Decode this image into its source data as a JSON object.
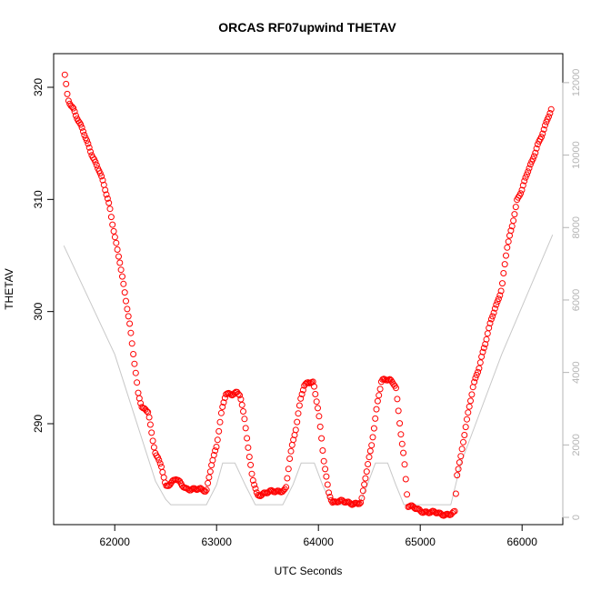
{
  "chart_data": {
    "type": "scatter",
    "title": "ORCAS RF07upwind THETAV",
    "xlabel": "UTC Seconds",
    "ylabel": "THETAV",
    "xlim": [
      61400,
      66400
    ],
    "ylim": [
      281,
      323
    ],
    "y2lim": [
      -200,
      12800
    ],
    "x_ticks": [
      62000,
      63000,
      64000,
      65000,
      66000
    ],
    "y_ticks": [
      290,
      300,
      310,
      320
    ],
    "y2_ticks": [
      0,
      2000,
      4000,
      6000,
      8000,
      10000,
      12000
    ],
    "colors": {
      "thetav": "#ff0000",
      "altitude": "#c8c8c8",
      "axis": "#000000",
      "right_axis": "#b4b4b4"
    },
    "series": [
      {
        "role": "thetav",
        "axis": "left",
        "style": "open-circles",
        "knots": [
          [
            61510,
            321.2
          ],
          [
            61540,
            319.0
          ],
          [
            61590,
            318.2
          ],
          [
            61620,
            317.4
          ],
          [
            61700,
            315.8
          ],
          [
            61780,
            314.0
          ],
          [
            61850,
            312.5
          ],
          [
            61900,
            311.0
          ],
          [
            61950,
            309.3
          ],
          [
            62000,
            306.8
          ],
          [
            62050,
            304.5
          ],
          [
            62100,
            301.5
          ],
          [
            62150,
            298.5
          ],
          [
            62200,
            295.0
          ],
          [
            62230,
            292.8
          ],
          [
            62270,
            291.5
          ],
          [
            62330,
            291.0
          ],
          [
            62370,
            288.5
          ],
          [
            62400,
            287.3
          ],
          [
            62460,
            286.3
          ],
          [
            62500,
            284.5
          ],
          [
            62550,
            284.6
          ],
          [
            62600,
            285.0
          ],
          [
            62700,
            284.3
          ],
          [
            62800,
            284.1
          ],
          [
            62900,
            284.0
          ],
          [
            62950,
            286.5
          ],
          [
            63000,
            288.0
          ],
          [
            63050,
            291.0
          ],
          [
            63090,
            292.6
          ],
          [
            63150,
            292.7
          ],
          [
            63200,
            292.9
          ],
          [
            63230,
            292.6
          ],
          [
            63280,
            290.0
          ],
          [
            63320,
            287.0
          ],
          [
            63350,
            285.3
          ],
          [
            63400,
            283.7
          ],
          [
            63500,
            283.8
          ],
          [
            63600,
            284.0
          ],
          [
            63680,
            284.2
          ],
          [
            63720,
            287.0
          ],
          [
            63780,
            289.5
          ],
          [
            63830,
            292.5
          ],
          [
            63860,
            293.5
          ],
          [
            63900,
            293.8
          ],
          [
            63950,
            293.6
          ],
          [
            64000,
            291.0
          ],
          [
            64050,
            287.0
          ],
          [
            64100,
            284.0
          ],
          [
            64140,
            283.0
          ],
          [
            64300,
            283.0
          ],
          [
            64420,
            282.9
          ],
          [
            64470,
            285.5
          ],
          [
            64520,
            288.0
          ],
          [
            64580,
            292.0
          ],
          [
            64620,
            293.9
          ],
          [
            64700,
            293.8
          ],
          [
            64760,
            293.4
          ],
          [
            64800,
            290.0
          ],
          [
            64840,
            287.0
          ],
          [
            64880,
            282.6
          ],
          [
            65000,
            282.3
          ],
          [
            65100,
            282.1
          ],
          [
            65200,
            281.9
          ],
          [
            65340,
            282.1
          ],
          [
            65360,
            285.3
          ],
          [
            65400,
            287.0
          ],
          [
            65450,
            290.0
          ],
          [
            65520,
            293.5
          ],
          [
            65580,
            295.0
          ],
          [
            65650,
            297.5
          ],
          [
            65700,
            299.5
          ],
          [
            65800,
            302.0
          ],
          [
            65850,
            305.5
          ],
          [
            65900,
            307.5
          ],
          [
            65950,
            310.0
          ],
          [
            66000,
            311.0
          ],
          [
            66050,
            312.3
          ],
          [
            66100,
            313.3
          ],
          [
            66150,
            314.8
          ],
          [
            66200,
            316.0
          ],
          [
            66250,
            317.2
          ],
          [
            66290,
            318.0
          ]
        ]
      },
      {
        "role": "altitude",
        "axis": "right",
        "style": "line",
        "knots": [
          [
            61500,
            7500
          ],
          [
            62000,
            4500
          ],
          [
            62400,
            1000
          ],
          [
            62500,
            500
          ],
          [
            62550,
            350
          ],
          [
            62900,
            350
          ],
          [
            63000,
            900
          ],
          [
            63060,
            1500
          ],
          [
            63180,
            1500
          ],
          [
            63280,
            900
          ],
          [
            63380,
            350
          ],
          [
            63650,
            350
          ],
          [
            63750,
            900
          ],
          [
            63830,
            1500
          ],
          [
            63960,
            1500
          ],
          [
            64040,
            900
          ],
          [
            64130,
            350
          ],
          [
            64400,
            350
          ],
          [
            64480,
            900
          ],
          [
            64560,
            1500
          ],
          [
            64680,
            1500
          ],
          [
            64760,
            900
          ],
          [
            64840,
            350
          ],
          [
            65300,
            350
          ],
          [
            65400,
            1500
          ],
          [
            65800,
            4500
          ],
          [
            66300,
            7800
          ]
        ]
      }
    ]
  }
}
